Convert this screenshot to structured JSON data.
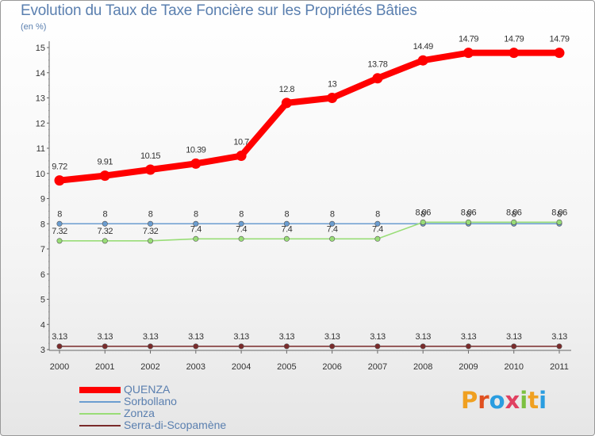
{
  "title": "Evolution du Taux de Taxe Foncière sur les Propriétés Bâties",
  "unit": "(en %)",
  "logo": {
    "letters": [
      "P",
      "r",
      "o",
      "x",
      "i",
      "t",
      "i"
    ],
    "colors": [
      "#f0a020",
      "#e05020",
      "#2a9de0",
      "#e04060",
      "#7cc040",
      "#f0a020",
      "#2a9de0"
    ]
  },
  "chart_data": {
    "type": "line",
    "title": "Evolution du Taux de Taxe Foncière sur les Propriétés Bâties",
    "ylabel": "(en %)",
    "x": [
      "2000",
      "2001",
      "2002",
      "2003",
      "2004",
      "2005",
      "2006",
      "2007",
      "2008",
      "2009",
      "2010",
      "2011"
    ],
    "ylim": [
      3,
      15
    ],
    "yticks": [
      3,
      4,
      5,
      6,
      7,
      8,
      9,
      10,
      11,
      12,
      13,
      14,
      15
    ],
    "grid": false,
    "legend": "bottom-left",
    "series": [
      {
        "name": "QUENZA",
        "color": "#ff0000",
        "values": [
          9.72,
          9.91,
          10.15,
          10.39,
          10.7,
          12.8,
          13,
          13.78,
          14.49,
          14.79,
          14.79,
          14.79
        ],
        "labels": [
          "9.72",
          "9.91",
          "10.15",
          "10.39",
          "10.7",
          "12.8",
          "13",
          "13.78",
          "14.49",
          "14.79",
          "14.79",
          "14.79"
        ]
      },
      {
        "name": "Sorbollano",
        "color": "#6b9dd0",
        "values": [
          8,
          8,
          8,
          8,
          8,
          8,
          8,
          8,
          8,
          8,
          8,
          8
        ],
        "labels": [
          "8",
          "8",
          "8",
          "8",
          "8",
          "8",
          "8",
          "8",
          "8",
          "8",
          "8",
          "8"
        ]
      },
      {
        "name": "Zonza",
        "color": "#99dd77",
        "values": [
          7.32,
          7.32,
          7.32,
          7.4,
          7.4,
          7.4,
          7.4,
          7.4,
          8.06,
          8.06,
          8.06,
          8.06
        ],
        "labels": [
          "7.32",
          "7.32",
          "7.32",
          "7.4",
          "7.4",
          "7.4",
          "7.4",
          "7.4",
          "8.06",
          "8.06",
          "8.06",
          "8.06"
        ]
      },
      {
        "name": "Serra-di-Scopamène",
        "color": "#7a2a2a",
        "values": [
          3.13,
          3.13,
          3.13,
          3.13,
          3.13,
          3.13,
          3.13,
          3.13,
          3.13,
          3.13,
          3.13,
          3.13
        ],
        "labels": [
          "3.13",
          "3.13",
          "3.13",
          "3.13",
          "3.13",
          "3.13",
          "3.13",
          "3.13",
          "3.13",
          "3.13",
          "3.13",
          "3.13"
        ]
      }
    ]
  }
}
